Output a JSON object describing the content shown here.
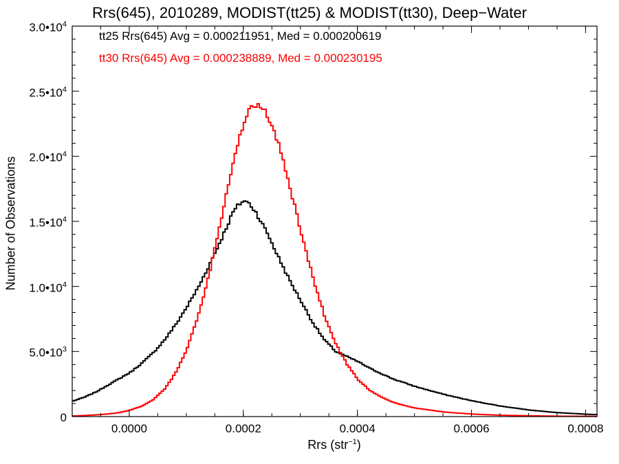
{
  "chart_data": {
    "type": "line",
    "title": "Rrs(645), 2010289, MODIST(tt25) & MODIST(tt30), Deep−Water",
    "xlabel_main": "Rrs (str",
    "xlabel_sup": "−1",
    "xlabel_tail": ")",
    "ylabel": "Number of Observations",
    "xlim": [
      -0.0001,
      0.00082
    ],
    "ylim": [
      0,
      30000
    ],
    "x_ticks": [
      {
        "value": 0.0,
        "label": "0.0000"
      },
      {
        "value": 0.0002,
        "label": "0.0002"
      },
      {
        "value": 0.0004,
        "label": "0.0004"
      },
      {
        "value": 0.0006,
        "label": "0.0006"
      },
      {
        "value": 0.0008,
        "label": "0.0008"
      }
    ],
    "y_ticks": [
      {
        "value": 0,
        "mant": "0",
        "exp": ""
      },
      {
        "value": 5000,
        "mant": "5.0•10",
        "exp": "3"
      },
      {
        "value": 10000,
        "mant": "1.0•10",
        "exp": "4"
      },
      {
        "value": 15000,
        "mant": "1.5•10",
        "exp": "4"
      },
      {
        "value": 20000,
        "mant": "2.0•10",
        "exp": "4"
      },
      {
        "value": 25000,
        "mant": "2.5•10",
        "exp": "4"
      },
      {
        "value": 30000,
        "mant": "3.0•10",
        "exp": "4"
      }
    ],
    "annotations": [
      {
        "text": "tt25 Rrs(645) Avg = 0.000211951, Med = 0.000200619",
        "color": "#000000"
      },
      {
        "text": "tt30 Rrs(645) Avg = 0.000238889, Med = 0.000230195",
        "color": "#ff0000"
      }
    ],
    "grid": false,
    "series": [
      {
        "color": "#000000",
        "x": [
          -0.0001,
          -8e-05,
          -6e-05,
          -4e-05,
          -2e-05,
          0.0,
          2e-05,
          4e-05,
          6e-05,
          8e-05,
          0.0001,
          0.00012,
          0.00014,
          0.00016,
          0.00018,
          0.00019,
          0.0002,
          0.00021,
          0.00022,
          0.00024,
          0.00026,
          0.00028,
          0.0003,
          0.00032,
          0.00034,
          0.00036,
          0.00038,
          0.0004,
          0.00042,
          0.00044,
          0.00046,
          0.00048,
          0.0005,
          0.00055,
          0.0006,
          0.00065,
          0.0007,
          0.00075,
          0.0008,
          0.00082
        ],
        "y": [
          1200,
          1500,
          1900,
          2400,
          2900,
          3400,
          4100,
          4900,
          5900,
          7100,
          8500,
          10000,
          11800,
          13700,
          15700,
          16300,
          16600,
          16300,
          15700,
          14100,
          12200,
          10400,
          8800,
          7200,
          5900,
          5000,
          4600,
          4200,
          3700,
          3300,
          2900,
          2600,
          2300,
          1700,
          1200,
          800,
          500,
          300,
          180,
          150
        ]
      },
      {
        "color": "#ff0000",
        "x": [
          -0.0001,
          -8e-05,
          -6e-05,
          -4e-05,
          -2e-05,
          0.0,
          2e-05,
          4e-05,
          6e-05,
          8e-05,
          0.0001,
          0.00012,
          0.00014,
          0.00016,
          0.00018,
          0.0002,
          0.00021,
          0.00022,
          0.00023,
          0.00024,
          0.00026,
          0.00028,
          0.0003,
          0.00032,
          0.00034,
          0.00036,
          0.00038,
          0.0004,
          0.00042,
          0.00044,
          0.00046,
          0.00048,
          0.0005,
          0.00055,
          0.0006,
          0.00065,
          0.0007,
          0.00075,
          0.0008,
          0.00082
        ],
        "y": [
          50,
          80,
          130,
          200,
          300,
          500,
          800,
          1300,
          2100,
          3400,
          5300,
          7900,
          11300,
          15400,
          19600,
          22800,
          23600,
          24000,
          23800,
          23200,
          20900,
          17600,
          14000,
          10700,
          7800,
          5600,
          4000,
          2800,
          2000,
          1500,
          1100,
          850,
          650,
          350,
          190,
          100,
          60,
          30,
          20,
          15
        ]
      }
    ]
  }
}
